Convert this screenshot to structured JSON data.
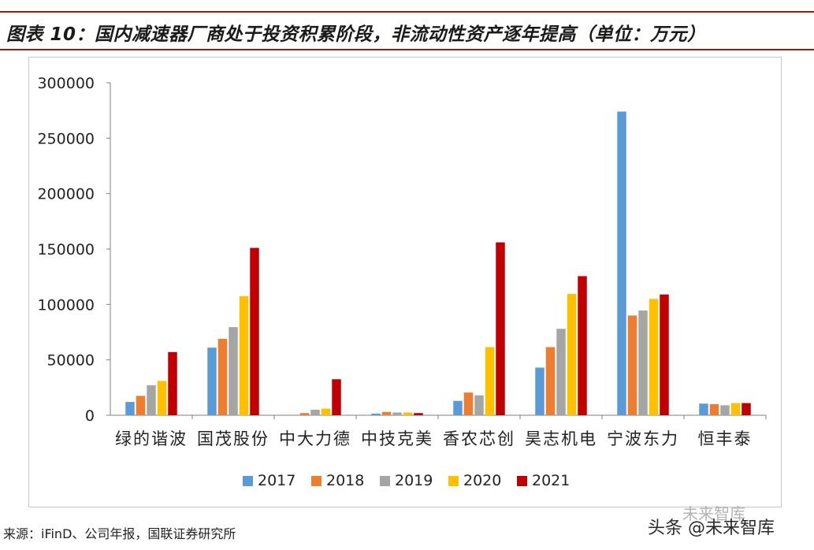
{
  "header": {
    "title": "图表 10：国内减速器厂商处于投资积累阶段，非流动性资产逐年提高（单位：万元）"
  },
  "chart_data": {
    "type": "bar",
    "title": "图表 10：国内减速器厂商处于投资积累阶段，非流动性资产逐年提高（单位：万元）",
    "xlabel": "",
    "ylabel": "",
    "ylim": [
      0,
      300000
    ],
    "yticks": [
      "0",
      "50000",
      "100000",
      "150000",
      "200000",
      "250000",
      "300000"
    ],
    "grid": false,
    "legend_position": "bottom",
    "categories": [
      "绿的谐波",
      "国茂股份",
      "中大力德",
      "中技克美",
      "香农芯创",
      "昊志机电",
      "宁波东力",
      "恒丰泰"
    ],
    "series": [
      {
        "name": "2017",
        "color": "#5b9bd5",
        "values": [
          12000,
          61000,
          0,
          1500,
          13000,
          43000,
          274000,
          10500
        ]
      },
      {
        "name": "2018",
        "color": "#ed7d31",
        "values": [
          17500,
          69000,
          2000,
          3000,
          20500,
          61500,
          90000,
          10000
        ]
      },
      {
        "name": "2019",
        "color": "#a5a5a5",
        "values": [
          27000,
          79500,
          5000,
          2500,
          18000,
          78000,
          94500,
          9000
        ]
      },
      {
        "name": "2020",
        "color": "#ffc000",
        "values": [
          31000,
          107500,
          6000,
          2500,
          61500,
          109500,
          105000,
          11000
        ]
      },
      {
        "name": "2021",
        "color": "#c00000",
        "values": [
          57000,
          151000,
          32500,
          2000,
          156000,
          125500,
          109000,
          11000
        ]
      }
    ]
  },
  "footer": {
    "source": "来源：iFinD、公司年报，国联证券研究所",
    "watermark_faint": "未来智库",
    "watermark": "头条 @未来智库"
  }
}
